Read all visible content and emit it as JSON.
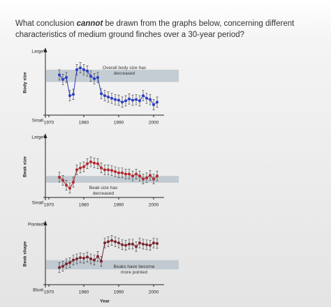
{
  "question": {
    "before": "What conclusion ",
    "emphasis": "cannot",
    "after": " be drawn from the graphs below, concerning different",
    "line2": "characteristics of medium ground finches over a 30-year period?"
  },
  "chart_data": [
    {
      "type": "line",
      "ylabel": "Body size",
      "annotation": "Overall body size has decreased",
      "x": [
        1973,
        1974,
        1975,
        1976,
        1977,
        1978,
        1979,
        1980,
        1981,
        1982,
        1983,
        1984,
        1985,
        1986,
        1987,
        1988,
        1989,
        1990,
        1991,
        1992,
        1993,
        1994,
        1995,
        1996,
        1997,
        1998,
        1999,
        2000,
        2001
      ],
      "series": [
        {
          "color": "#2a3fc4",
          "error": 0.8,
          "values": [
            6.2,
            5.5,
            5.8,
            3.0,
            3.2,
            7.0,
            7.3,
            7.0,
            6.8,
            6.0,
            5.6,
            5.8,
            3.3,
            3.0,
            2.8,
            2.6,
            2.4,
            2.3,
            2.0,
            2.2,
            2.5,
            2.3,
            2.4,
            2.2,
            3.0,
            2.6,
            2.4,
            1.6,
            2.0
          ]
        }
      ],
      "band": [
        5.1,
        7.0
      ],
      "xlim": [
        1969,
        2003
      ],
      "xticks": [
        1970,
        1980,
        1990,
        2000
      ],
      "ylim": [
        0,
        10
      ],
      "yticks": [
        {
          "value": 0,
          "label": "Small"
        },
        {
          "value": 10,
          "label": "Large"
        }
      ]
    },
    {
      "type": "line",
      "ylabel": "Beak size",
      "annotation": "Beak size has decreased",
      "x": [
        1973,
        1974,
        1975,
        1976,
        1977,
        1978,
        1979,
        1980,
        1981,
        1982,
        1983,
        1984,
        1985,
        1986,
        1987,
        1988,
        1989,
        1990,
        1991,
        1992,
        1993,
        1994,
        1995,
        1996,
        1997,
        1998,
        1999,
        2000,
        2001
      ],
      "series": [
        {
          "color": "#b3282d",
          "error": 0.8,
          "values": [
            3.3,
            2.8,
            2.0,
            1.5,
            2.5,
            4.5,
            4.8,
            5.0,
            5.5,
            5.8,
            5.6,
            5.5,
            4.8,
            4.5,
            4.5,
            4.4,
            4.2,
            4.0,
            4.0,
            3.8,
            3.8,
            3.5,
            3.8,
            3.5,
            3.0,
            3.2,
            3.6,
            3.0,
            3.5
          ]
        }
      ],
      "band": [
        2.4,
        3.5
      ],
      "xlim": [
        1969,
        2003
      ],
      "xticks": [
        1970,
        1980,
        1990,
        2000
      ],
      "ylim": [
        0,
        10
      ],
      "yticks": [
        {
          "value": 0,
          "label": "Small"
        },
        {
          "value": 10,
          "label": "Large"
        }
      ]
    },
    {
      "type": "line",
      "ylabel": "Beak shape",
      "annotation": "Beaks have become more pointed",
      "xlabel": "Year",
      "x": [
        1973,
        1974,
        1975,
        1976,
        1977,
        1978,
        1979,
        1980,
        1981,
        1982,
        1983,
        1984,
        1985,
        1986,
        1987,
        1988,
        1989,
        1990,
        1991,
        1992,
        1993,
        1994,
        1995,
        1996,
        1997,
        1998,
        1999,
        2000,
        2001
      ],
      "series": [
        {
          "color": "#7a2630",
          "error": 0.8,
          "values": [
            2.8,
            3.0,
            3.4,
            3.6,
            4.0,
            4.2,
            4.4,
            4.3,
            4.5,
            4.2,
            4.0,
            4.6,
            3.8,
            6.8,
            7.0,
            7.2,
            7.0,
            6.8,
            6.5,
            6.4,
            6.6,
            6.6,
            6.2,
            6.8,
            6.6,
            6.5,
            6.4,
            6.8,
            6.7
          ]
        }
      ],
      "band": [
        2.5,
        4.0
      ],
      "xlim": [
        1969,
        2003
      ],
      "xticks": [
        1970,
        1980,
        1990,
        2000
      ],
      "ylim": [
        0,
        10
      ],
      "yticks": [
        {
          "value": 0,
          "label": "Blunt"
        },
        {
          "value": 10,
          "label": "Pointed"
        }
      ]
    }
  ]
}
